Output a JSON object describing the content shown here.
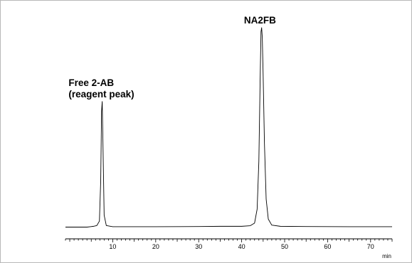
{
  "chart_data": {
    "type": "line",
    "xunit": "min",
    "xlim": [
      -1,
      75
    ],
    "ylim": [
      0,
      1.0
    ],
    "x_major_ticks": [
      10,
      20,
      30,
      40,
      50,
      60,
      70
    ],
    "x_minor_step": 1,
    "series": [
      {
        "x": [
          -1,
          4,
          5.5,
          6.3,
          6.9,
          7.2,
          7.4,
          7.55,
          7.7,
          8.0,
          8.5,
          10,
          20,
          30,
          35,
          40,
          42,
          43,
          43.6,
          44.0,
          44.3,
          44.5,
          44.65,
          44.8,
          45.0,
          45.3,
          45.7,
          46.2,
          47,
          49,
          55,
          65,
          75
        ],
        "y": [
          0,
          0,
          0.004,
          0.008,
          0.03,
          0.23,
          0.58,
          0.63,
          0.45,
          0.06,
          0.008,
          0.002,
          0.002,
          0.003,
          0.004,
          0.004,
          0.007,
          0.02,
          0.09,
          0.33,
          0.74,
          0.98,
          1.0,
          0.95,
          0.76,
          0.42,
          0.14,
          0.04,
          0.01,
          0.004,
          0.003,
          0.002,
          0.002
        ]
      }
    ],
    "annotations": [
      {
        "lines": [
          "NA2FB"
        ],
        "anchor_x": 44.6
      },
      {
        "lines": [
          "Free 2-AB",
          "(reagent peak)"
        ],
        "anchor_x": 7.5
      }
    ]
  }
}
